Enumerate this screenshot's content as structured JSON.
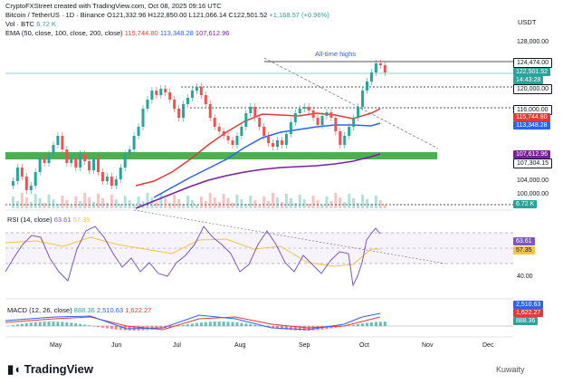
{
  "header": {
    "line1_prefix": "CryptoFXStreet created with TradingView.com, Oct 08, 2025 09:16 UTC",
    "symbol": "Bitcoin / TetherUS · 1D · Binance",
    "open": "O121,332.96",
    "high": "H122,850.00",
    "low": "L121,066.14",
    "close": "C122,501.52",
    "change": "+1,168.57 (+0.96%)",
    "vol_label": "Vol · BTC",
    "vol_value": "6.72 K",
    "ema_label": "EMA (50, close, 100, close, 200, close)",
    "ema50": "115,744.80",
    "ema100": "113,348.28",
    "ema200": "107,612.96",
    "currency": "USDT"
  },
  "annotation": "All-time highs",
  "price_axis": {
    "ticks": [
      "128,000.00",
      "104,000.00",
      "100,000.00"
    ],
    "labels": [
      {
        "text": "124,474.00",
        "bg": "#ffffff",
        "fg": "#131722",
        "border": "#131722"
      },
      {
        "text": "122,501.52",
        "bg": "#26a69a",
        "fg": "#ffffff"
      },
      {
        "text": "14:43:28",
        "bg": "#26a69a",
        "fg": "#ffffff"
      },
      {
        "text": "120,000.00",
        "bg": "#ffffff",
        "fg": "#131722",
        "border": "#131722"
      },
      {
        "text": "116,000.00",
        "bg": "#ffffff",
        "fg": "#131722",
        "border": "#131722"
      },
      {
        "text": "115,744.80",
        "bg": "#e53935",
        "fg": "#ffffff"
      },
      {
        "text": "113,348.28",
        "bg": "#2962ff",
        "fg": "#ffffff"
      },
      {
        "text": "107,612.96",
        "bg": "#7b1fa2",
        "fg": "#ffffff"
      },
      {
        "text": "107,304.15",
        "bg": "#ffffff",
        "fg": "#131722",
        "border": "#131722"
      },
      {
        "text": "6.72 K",
        "bg": "#26a69a",
        "fg": "#ffffff"
      }
    ]
  },
  "rsi": {
    "label": "RSI (14, close)",
    "value": "63.61",
    "ma": "57.35",
    "tick_40": "40.00"
  },
  "macd": {
    "label": "MACD (12, 26, close)",
    "hist": "888.36",
    "macd": "2,510.63",
    "signal": "1,622.27",
    "axis_labels": [
      {
        "text": "2,510.63",
        "bg": "#2962ff"
      },
      {
        "text": "1,622.27",
        "bg": "#e53935"
      },
      {
        "text": "888.36",
        "bg": "#26a69a"
      }
    ]
  },
  "time_axis": [
    "May",
    "Jun",
    "Jul",
    "Aug",
    "Sep",
    "Oct",
    "Nov",
    "Dec"
  ],
  "footer": {
    "logo": "TradingView",
    "watermark": "Kuwaity"
  },
  "colors": {
    "up": "#26a69a",
    "down": "#ef5350",
    "ema50": "#e53935",
    "ema100": "#2962ff",
    "ema200": "#7b1fa2",
    "rsi": "#7e57c2",
    "rsi_ma": "#f6c343",
    "support_zone": "#4caf50"
  }
}
